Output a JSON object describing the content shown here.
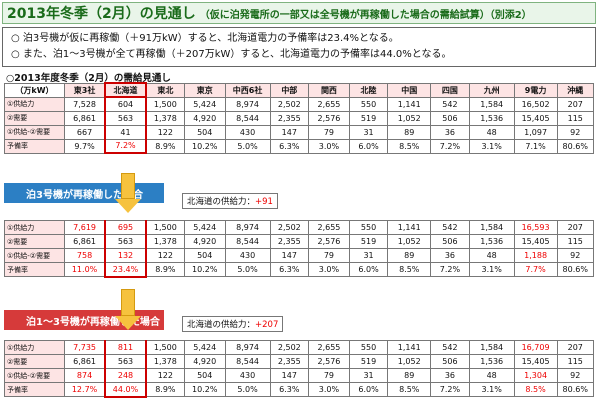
{
  "title": {
    "main": "2013年冬季（2月）の見通し",
    "sub": "（仮に泊発電所の一部又は全号機が再稼働した場合の需給試算）（別添2）"
  },
  "bullets": [
    "○ 泊3号機が仮に再稼働（＋91万kW）すると、北海道電力の予備率は23.4%となる。",
    "○ また、泊1～3号機が全て再稼働（＋207万kW）すると、北海道電力の予備率は44.0%となる。"
  ],
  "subheading": "○2013年度冬季（2月）の需給見通し",
  "header": [
    "（万kW）",
    "東3社",
    "北海道",
    "東北",
    "東京",
    "中西6社",
    "中部",
    "関西",
    "北陸",
    "中国",
    "四国",
    "九州",
    "9電力",
    "沖縄"
  ],
  "row_labels": [
    "①供給力",
    "②需要",
    "①供給-②需要",
    "予備率"
  ],
  "table1": [
    [
      "7,528",
      "604",
      "1,500",
      "5,424",
      "8,974",
      "2,502",
      "2,655",
      "550",
      "1,141",
      "542",
      "1,584",
      "16,502",
      "207"
    ],
    [
      "6,861",
      "563",
      "1,378",
      "4,920",
      "8,544",
      "2,355",
      "2,576",
      "519",
      "1,052",
      "506",
      "1,536",
      "15,405",
      "115"
    ],
    [
      "667",
      "41",
      "122",
      "504",
      "430",
      "147",
      "79",
      "31",
      "89",
      "36",
      "48",
      "1,097",
      "92"
    ],
    [
      "9.7%",
      "7.2%",
      "8.9%",
      "10.2%",
      "5.0%",
      "6.3%",
      "3.0%",
      "6.0%",
      "8.5%",
      "7.2%",
      "3.1%",
      "7.1%",
      "80.6%"
    ]
  ],
  "band1": {
    "label": "泊3号機が再稼働した場合",
    "note_label": "北海道の供給力：",
    "note_value": "+91"
  },
  "table2": [
    [
      "7,619",
      "695",
      "1,500",
      "5,424",
      "8,974",
      "2,502",
      "2,655",
      "550",
      "1,141",
      "542",
      "1,584",
      "16,593",
      "207"
    ],
    [
      "6,861",
      "563",
      "1,378",
      "4,920",
      "8,544",
      "2,355",
      "2,576",
      "519",
      "1,052",
      "506",
      "1,536",
      "15,405",
      "115"
    ],
    [
      "758",
      "132",
      "122",
      "504",
      "430",
      "147",
      "79",
      "31",
      "89",
      "36",
      "48",
      "1,188",
      "92"
    ],
    [
      "11.0%",
      "23.4%",
      "8.9%",
      "10.2%",
      "5.0%",
      "6.3%",
      "3.0%",
      "6.0%",
      "8.5%",
      "7.2%",
      "3.1%",
      "7.7%",
      "80.6%"
    ]
  ],
  "band2": {
    "label": "泊1～3号機が再稼働した場合",
    "note_label": "北海道の供給力：",
    "note_value": "+207"
  },
  "table3": [
    [
      "7,735",
      "811",
      "1,500",
      "5,424",
      "8,974",
      "2,502",
      "2,655",
      "550",
      "1,141",
      "542",
      "1,584",
      "16,709",
      "207"
    ],
    [
      "6,861",
      "563",
      "1,378",
      "4,920",
      "8,544",
      "2,355",
      "2,576",
      "519",
      "1,052",
      "506",
      "1,536",
      "15,405",
      "115"
    ],
    [
      "874",
      "248",
      "122",
      "504",
      "430",
      "147",
      "79",
      "31",
      "89",
      "36",
      "48",
      "1,304",
      "92"
    ],
    [
      "12.7%",
      "44.0%",
      "8.9%",
      "10.2%",
      "5.0%",
      "6.3%",
      "3.0%",
      "6.0%",
      "8.5%",
      "7.2%",
      "3.1%",
      "8.5%",
      "80.6%"
    ]
  ],
  "colors": {
    "red_text": "#e00000",
    "band1": "#2c7fc4",
    "band2": "#d63a3a",
    "arrow": "#f6c23e",
    "header_bg": "#fde4e4"
  }
}
